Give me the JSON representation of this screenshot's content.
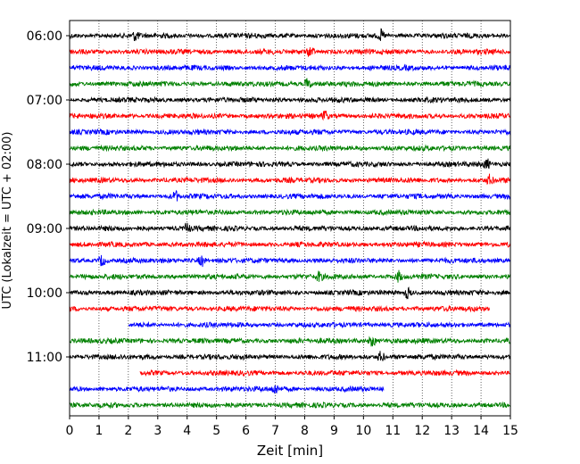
{
  "chart_data": {
    "type": "line",
    "title": "",
    "xlabel": "Zeit  [min]",
    "ylabel": "UTC (Lokalzeit = UTC + 02:00)",
    "xlim": [
      0,
      15
    ],
    "x_ticks": [
      "0",
      "1",
      "2",
      "3",
      "4",
      "5",
      "6",
      "7",
      "8",
      "9",
      "10",
      "11",
      "12",
      "13",
      "14",
      "15"
    ],
    "y_ticks": [
      "06:00",
      "07:00",
      "08:00",
      "09:00",
      "10:00",
      "11:00"
    ],
    "grid": "vertical dotted",
    "colors": {
      "cycle": [
        "#000000",
        "#ff0000",
        "#0000ff",
        "#008000"
      ]
    },
    "traces": [
      {
        "start": "06:00",
        "color": "#000000",
        "x_range": [
          0,
          15
        ],
        "events": [
          2.25,
          10.6
        ]
      },
      {
        "start": "06:15",
        "color": "#ff0000",
        "x_range": [
          0,
          15
        ],
        "events": [
          8.2
        ]
      },
      {
        "start": "06:30",
        "color": "#0000ff",
        "x_range": [
          0,
          15
        ],
        "events": []
      },
      {
        "start": "06:45",
        "color": "#008000",
        "x_range": [
          0,
          15
        ],
        "events": [
          8.1
        ]
      },
      {
        "start": "07:00",
        "color": "#000000",
        "x_range": [
          0,
          15
        ],
        "events": []
      },
      {
        "start": "07:15",
        "color": "#ff0000",
        "x_range": [
          0,
          15
        ],
        "events": [
          8.7
        ]
      },
      {
        "start": "07:30",
        "color": "#0000ff",
        "x_range": [
          0,
          15
        ],
        "events": []
      },
      {
        "start": "07:45",
        "color": "#008000",
        "x_range": [
          0,
          15
        ],
        "events": []
      },
      {
        "start": "08:00",
        "color": "#000000",
        "x_range": [
          0,
          15
        ],
        "events": [
          14.2
        ]
      },
      {
        "start": "08:15",
        "color": "#ff0000",
        "x_range": [
          0,
          15
        ],
        "events": [
          14.3
        ]
      },
      {
        "start": "08:30",
        "color": "#0000ff",
        "x_range": [
          0,
          15
        ],
        "events": [
          3.6
        ]
      },
      {
        "start": "08:45",
        "color": "#008000",
        "x_range": [
          0,
          15
        ],
        "events": []
      },
      {
        "start": "09:00",
        "color": "#000000",
        "x_range": [
          0,
          15
        ],
        "events": [
          4.0
        ]
      },
      {
        "start": "09:15",
        "color": "#ff0000",
        "x_range": [
          0,
          15
        ],
        "events": []
      },
      {
        "start": "09:30",
        "color": "#0000ff",
        "x_range": [
          0,
          15
        ],
        "events": [
          1.1,
          4.5
        ]
      },
      {
        "start": "09:45",
        "color": "#008000",
        "x_range": [
          0,
          15
        ],
        "events": [
          8.5,
          11.2
        ]
      },
      {
        "start": "10:00",
        "color": "#000000",
        "x_range": [
          0,
          15
        ],
        "events": [
          11.5
        ]
      },
      {
        "start": "10:15",
        "color": "#ff0000",
        "x_range": [
          0,
          14.3
        ],
        "events": []
      },
      {
        "start": "10:30",
        "color": "#0000ff",
        "x_range": [
          2.0,
          15
        ],
        "events": []
      },
      {
        "start": "10:45",
        "color": "#008000",
        "x_range": [
          0,
          15
        ],
        "events": [
          10.3
        ]
      },
      {
        "start": "11:00",
        "color": "#000000",
        "x_range": [
          0,
          15
        ],
        "events": [
          10.6
        ]
      },
      {
        "start": "11:15",
        "color": "#ff0000",
        "x_range": [
          2.4,
          15
        ],
        "events": []
      },
      {
        "start": "11:30",
        "color": "#0000ff",
        "x_range": [
          0,
          10.7
        ],
        "events": [
          7.0
        ]
      },
      {
        "start": "11:45",
        "color": "#008000",
        "x_range": [
          0,
          15
        ],
        "events": []
      }
    ]
  }
}
